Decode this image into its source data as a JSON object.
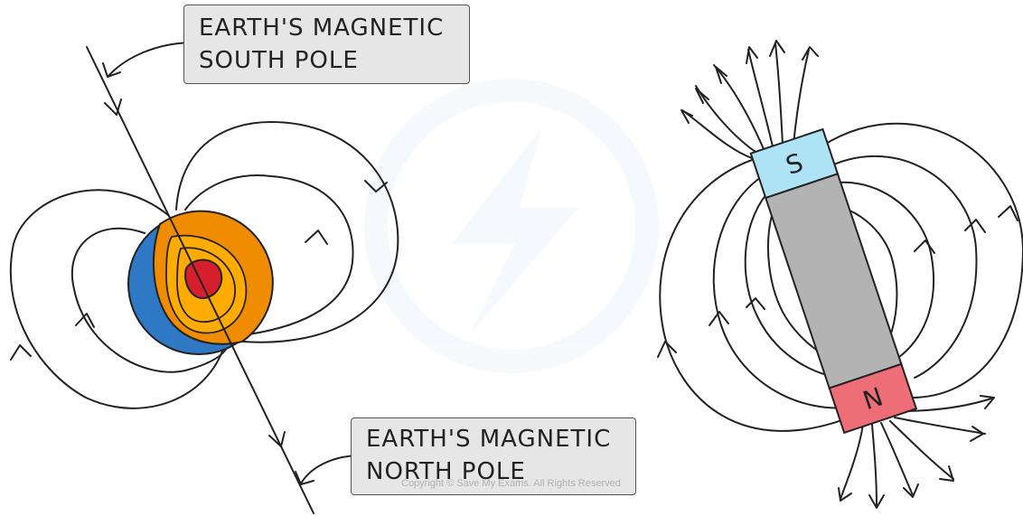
{
  "labels": {
    "south_pole": {
      "line1": "EARTH'S MAGNETIC",
      "line2": "SOUTH POLE"
    },
    "north_pole": {
      "line1": "EARTH'S MAGNETIC",
      "line2": "NORTH POLE"
    }
  },
  "magnet": {
    "top_pole": "S",
    "bottom_pole": "N"
  },
  "copyright": "Copyright © Save My Exams. All Rights Reserved",
  "colors": {
    "magnet_s": "#aee3f5",
    "magnet_n": "#ee6e78",
    "magnet_body": "#b3b3b3",
    "mantle_outer": "#f08c00",
    "mantle_inner": "#ffab00",
    "core": "#d61f2c",
    "crust": "#2f78c4"
  }
}
